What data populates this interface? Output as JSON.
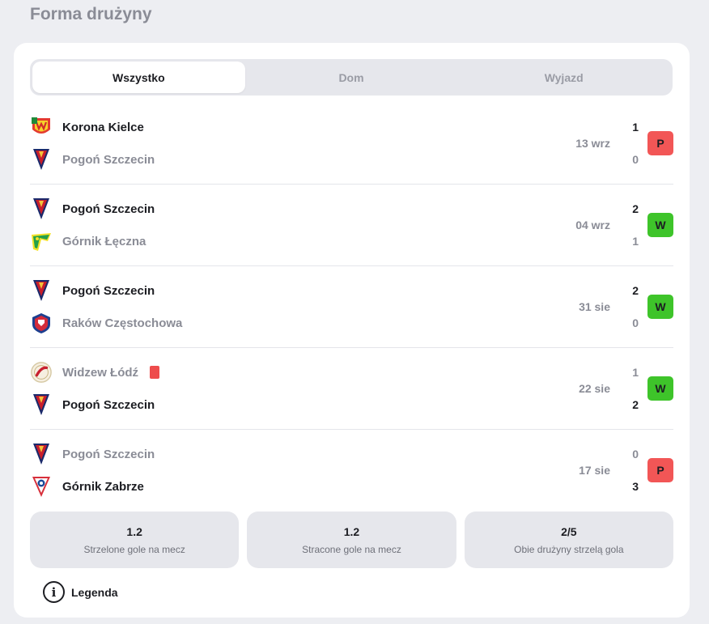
{
  "header": {
    "title": "Forma drużyny"
  },
  "tabs": [
    {
      "label": "Wszystko",
      "active": true
    },
    {
      "label": "Dom",
      "active": false
    },
    {
      "label": "Wyjazd",
      "active": false
    }
  ],
  "colors": {
    "win": "#3ec42a",
    "loss": "#f25656"
  },
  "matches": [
    {
      "home": {
        "name": "Korona Kielce",
        "logo": "korona-kielce-logo",
        "score": "1",
        "winner": true
      },
      "away": {
        "name": "Pogoń Szczecin",
        "logo": "pogon-szczecin-logo",
        "score": "0",
        "winner": false
      },
      "date": "13 wrz",
      "result": "P"
    },
    {
      "home": {
        "name": "Pogoń Szczecin",
        "logo": "pogon-szczecin-logo",
        "score": "2",
        "winner": true
      },
      "away": {
        "name": "Górnik Łęczna",
        "logo": "gornik-leczna-logo",
        "score": "1",
        "winner": false
      },
      "date": "04 wrz",
      "result": "W"
    },
    {
      "home": {
        "name": "Pogoń Szczecin",
        "logo": "pogon-szczecin-logo",
        "score": "2",
        "winner": true
      },
      "away": {
        "name": "Raków Częstochowa",
        "logo": "rakow-czestochowa-logo",
        "score": "0",
        "winner": false
      },
      "date": "31 sie",
      "result": "W"
    },
    {
      "home": {
        "name": "Widzew Łódź",
        "logo": "widzew-lodz-logo",
        "score": "1",
        "winner": false,
        "red_card": true
      },
      "away": {
        "name": "Pogoń Szczecin",
        "logo": "pogon-szczecin-logo",
        "score": "2",
        "winner": true
      },
      "date": "22 sie",
      "result": "W"
    },
    {
      "home": {
        "name": "Pogoń Szczecin",
        "logo": "pogon-szczecin-logo",
        "score": "0",
        "winner": false
      },
      "away": {
        "name": "Górnik Zabrze",
        "logo": "gornik-zabrze-logo",
        "score": "3",
        "winner": true
      },
      "date": "17 sie",
      "result": "P"
    }
  ],
  "stats": [
    {
      "value": "1.2",
      "label": "Strzelone gole na mecz"
    },
    {
      "value": "1.2",
      "label": "Stracone gole na mecz"
    },
    {
      "value": "2/5",
      "label": "Obie drużyny strzelą gola"
    }
  ],
  "legend": {
    "label": "Legenda",
    "icon": "info-icon"
  }
}
